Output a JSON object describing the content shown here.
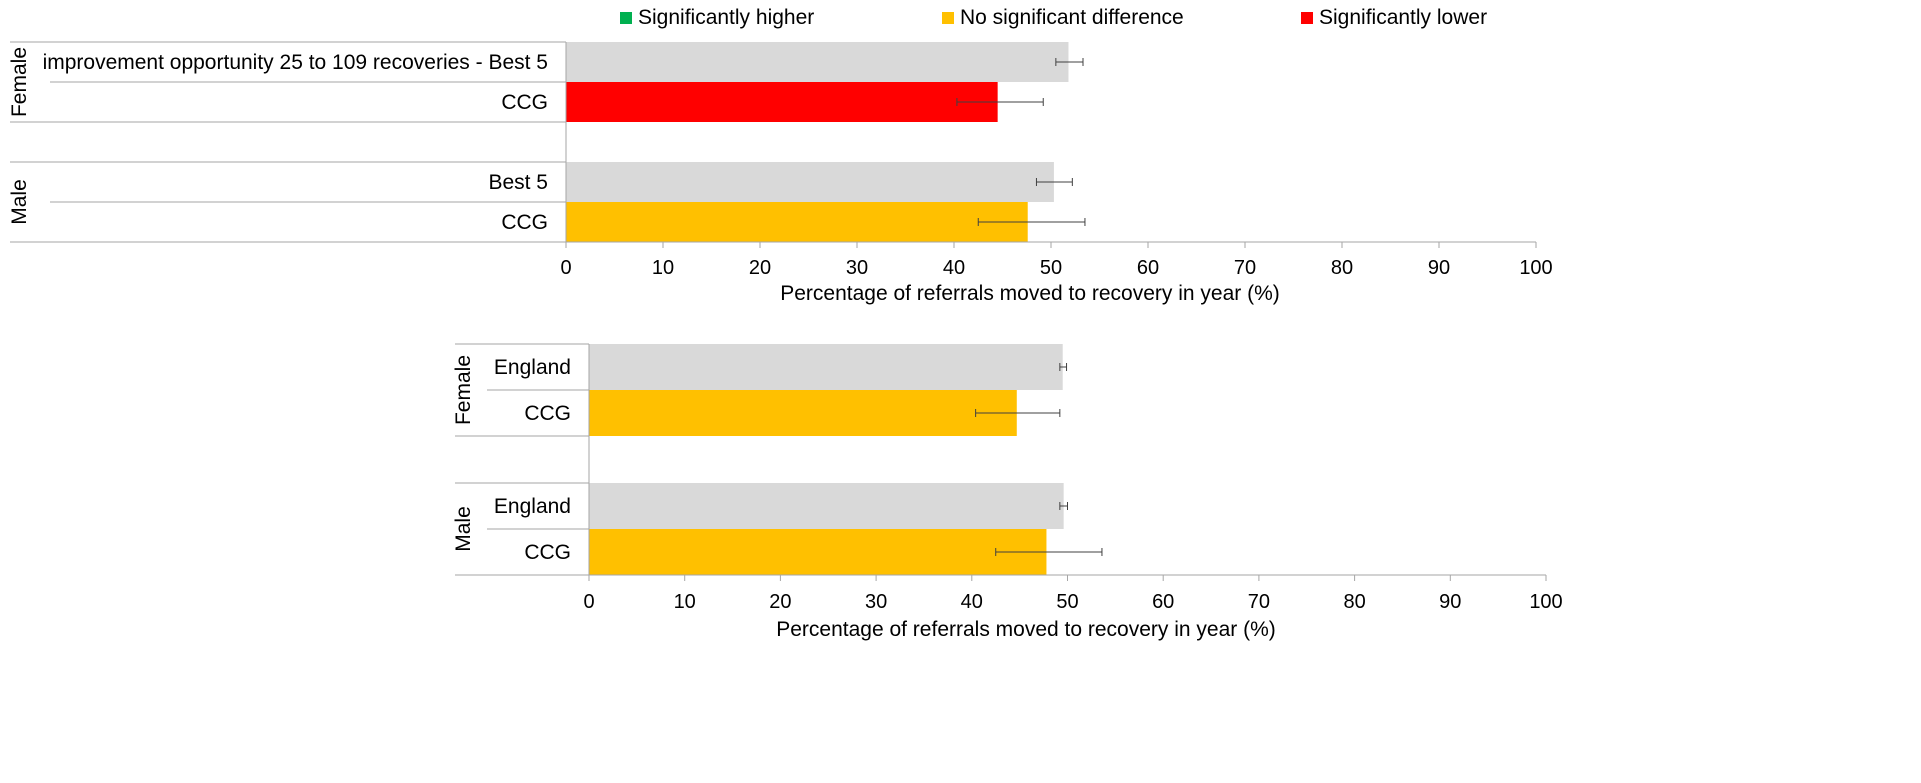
{
  "legend": {
    "items": [
      {
        "label": "Significantly higher",
        "color": "#00b050"
      },
      {
        "label": "No significant difference",
        "color": "#ffc000"
      },
      {
        "label": "Significantly lower",
        "color": "#ff0000"
      }
    ]
  },
  "colors": {
    "benchmark": "#d9d9d9",
    "higher": "#00b050",
    "no_difference": "#ffc000",
    "lower": "#ff0000",
    "axis": "#a6a6a6",
    "error_bar": "#404040"
  },
  "chart_data": [
    {
      "type": "bar",
      "orientation": "horizontal",
      "xlabel": "Percentage of referrals moved to recovery in year (%)",
      "xlim": [
        0,
        100
      ],
      "xticks": [
        "0",
        "10",
        "20",
        "30",
        "40",
        "50",
        "60",
        "70",
        "80",
        "90",
        "100"
      ],
      "groups": [
        {
          "label": "Female",
          "bars": [
            {
              "label": "improvement opportunity 25 to 109 recoveries - Best 5",
              "value": 51.8,
              "ci": [
                50.5,
                53.3
              ],
              "status": "benchmark"
            },
            {
              "label": "CCG",
              "value": 44.5,
              "ci": [
                40.3,
                49.2
              ],
              "status": "lower"
            }
          ]
        },
        {
          "label": "Male",
          "bars": [
            {
              "label": "Best 5",
              "value": 50.3,
              "ci": [
                48.5,
                52.2
              ],
              "status": "benchmark"
            },
            {
              "label": "CCG",
              "value": 47.6,
              "ci": [
                42.5,
                53.5
              ],
              "status": "no_difference"
            }
          ]
        }
      ]
    },
    {
      "type": "bar",
      "orientation": "horizontal",
      "xlabel": "Percentage of referrals moved  to recovery in year (%)",
      "xlim": [
        0,
        100
      ],
      "xticks": [
        "0",
        "10",
        "20",
        "30",
        "40",
        "50",
        "60",
        "70",
        "80",
        "90",
        "100"
      ],
      "groups": [
        {
          "label": "Female",
          "bars": [
            {
              "label": "England",
              "value": 49.5,
              "ci": [
                49.2,
                49.9
              ],
              "status": "benchmark"
            },
            {
              "label": "CCG",
              "value": 44.7,
              "ci": [
                40.4,
                49.2
              ],
              "status": "no_difference"
            }
          ]
        },
        {
          "label": "Male",
          "bars": [
            {
              "label": "England",
              "value": 49.6,
              "ci": [
                49.2,
                50.0
              ],
              "status": "benchmark"
            },
            {
              "label": "CCG",
              "value": 47.8,
              "ci": [
                42.5,
                53.6
              ],
              "status": "no_difference"
            }
          ]
        }
      ]
    }
  ]
}
